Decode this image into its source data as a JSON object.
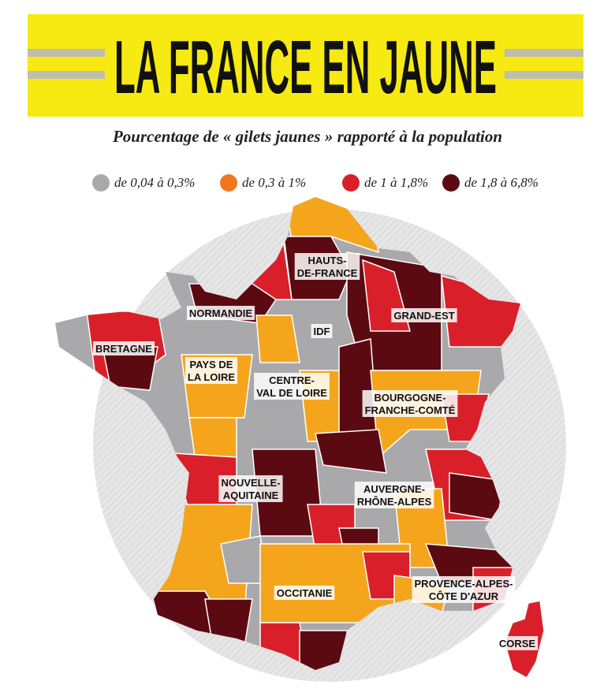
{
  "header": {
    "title": "LA FRANCE EN JAUNE",
    "subtitle": "Pourcentage de « gilets jaunes » rapporté à la population"
  },
  "legend": [
    {
      "label": "de 0,04 à 0,3%",
      "color": "#a9a9ab"
    },
    {
      "label": "de 0,3 à 1%",
      "color": "#f0771b"
    },
    {
      "label": "de 1 à 1,8%",
      "color": "#d9202a"
    },
    {
      "label": "de 1,8 à 6,8%",
      "color": "#5c0a12"
    }
  ],
  "map_fill": "#f5a51c",
  "regions": [
    {
      "lines": [
        "HAUTS-",
        "DE-FRANCE"
      ]
    },
    {
      "lines": [
        "NORMANDIE"
      ]
    },
    {
      "lines": [
        "IDF"
      ]
    },
    {
      "lines": [
        "GRAND-EST"
      ]
    },
    {
      "lines": [
        "BRETAGNE"
      ]
    },
    {
      "lines": [
        "PAYS DE",
        "LA LOIRE"
      ]
    },
    {
      "lines": [
        "CENTRE-",
        "VAL DE LOIRE"
      ]
    },
    {
      "lines": [
        "BOURGOGNE-",
        "FRANCHE-COMTÉ"
      ]
    },
    {
      "lines": [
        "NOUVELLE-",
        "AQUITAINE"
      ]
    },
    {
      "lines": [
        "AUVERGNE-",
        "RHÔNE-ALPES"
      ]
    },
    {
      "lines": [
        "OCCITANIE"
      ]
    },
    {
      "lines": [
        "PROVENCE-ALPES-",
        "CÔTE D'AZUR"
      ]
    },
    {
      "lines": [
        "CORSE"
      ]
    }
  ]
}
